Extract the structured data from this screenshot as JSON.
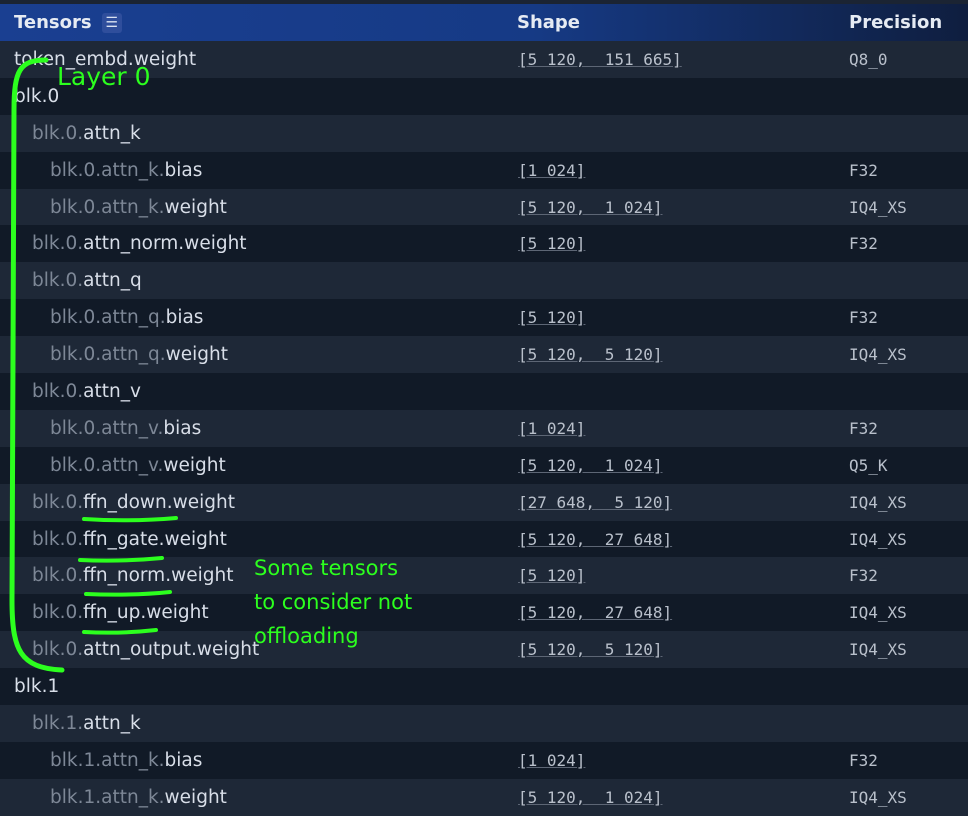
{
  "header": {
    "tensors": "Tensors",
    "shape": "Shape",
    "precision": "Precision",
    "menu_icon": "hamburger-menu-icon"
  },
  "rows": [
    {
      "level": 0,
      "prefix": "",
      "name": "token_embd.weight",
      "shape": "[5 120,  151 665]",
      "precision": "Q8_0"
    },
    {
      "level": 0,
      "prefix": "",
      "name": "blk.0",
      "shape": "",
      "precision": ""
    },
    {
      "level": 1,
      "prefix": "blk.0.",
      "name": "attn_k",
      "shape": "",
      "precision": ""
    },
    {
      "level": 2,
      "prefix": "blk.0.attn_k.",
      "name": "bias",
      "shape": "[1 024]",
      "precision": "F32"
    },
    {
      "level": 2,
      "prefix": "blk.0.attn_k.",
      "name": "weight",
      "shape": "[5 120,  1 024]",
      "precision": "IQ4_XS"
    },
    {
      "level": 1,
      "prefix": "blk.0.",
      "name": "attn_norm.weight",
      "shape": "[5 120]",
      "precision": "F32"
    },
    {
      "level": 1,
      "prefix": "blk.0.",
      "name": "attn_q",
      "shape": "",
      "precision": ""
    },
    {
      "level": 2,
      "prefix": "blk.0.attn_q.",
      "name": "bias",
      "shape": "[5 120]",
      "precision": "F32"
    },
    {
      "level": 2,
      "prefix": "blk.0.attn_q.",
      "name": "weight",
      "shape": "[5 120,  5 120]",
      "precision": "IQ4_XS"
    },
    {
      "level": 1,
      "prefix": "blk.0.",
      "name": "attn_v",
      "shape": "",
      "precision": ""
    },
    {
      "level": 2,
      "prefix": "blk.0.attn_v.",
      "name": "bias",
      "shape": "[1 024]",
      "precision": "F32"
    },
    {
      "level": 2,
      "prefix": "blk.0.attn_v.",
      "name": "weight",
      "shape": "[5 120,  1 024]",
      "precision": "Q5_K"
    },
    {
      "level": 1,
      "prefix": "blk.0.",
      "name": "ffn_down.weight",
      "shape": "[27 648,  5 120]",
      "precision": "IQ4_XS"
    },
    {
      "level": 1,
      "prefix": "blk.0.",
      "name": "ffn_gate.weight",
      "shape": "[5 120,  27 648]",
      "precision": "IQ4_XS"
    },
    {
      "level": 1,
      "prefix": "blk.0.",
      "name": "ffn_norm.weight",
      "shape": "[5 120]",
      "precision": "F32"
    },
    {
      "level": 1,
      "prefix": "blk.0.",
      "name": "ffn_up.weight",
      "shape": "[5 120,  27 648]",
      "precision": "IQ4_XS"
    },
    {
      "level": 1,
      "prefix": "blk.0.",
      "name": "attn_output.weight",
      "shape": "[5 120,  5 120]",
      "precision": "IQ4_XS"
    },
    {
      "level": 0,
      "prefix": "",
      "name": "blk.1",
      "shape": "",
      "precision": ""
    },
    {
      "level": 1,
      "prefix": "blk.1.",
      "name": "attn_k",
      "shape": "",
      "precision": ""
    },
    {
      "level": 2,
      "prefix": "blk.1.attn_k.",
      "name": "bias",
      "shape": "[1 024]",
      "precision": "F32"
    },
    {
      "level": 2,
      "prefix": "blk.1.attn_k.",
      "name": "weight",
      "shape": "[5 120,  1 024]",
      "precision": "IQ4_XS"
    }
  ],
  "annotations": {
    "layer_label": "Layer 0",
    "note_line1": "Some tensors",
    "note_line2": "to consider not",
    "note_line3": "offloading",
    "color": "#2cff1e"
  }
}
